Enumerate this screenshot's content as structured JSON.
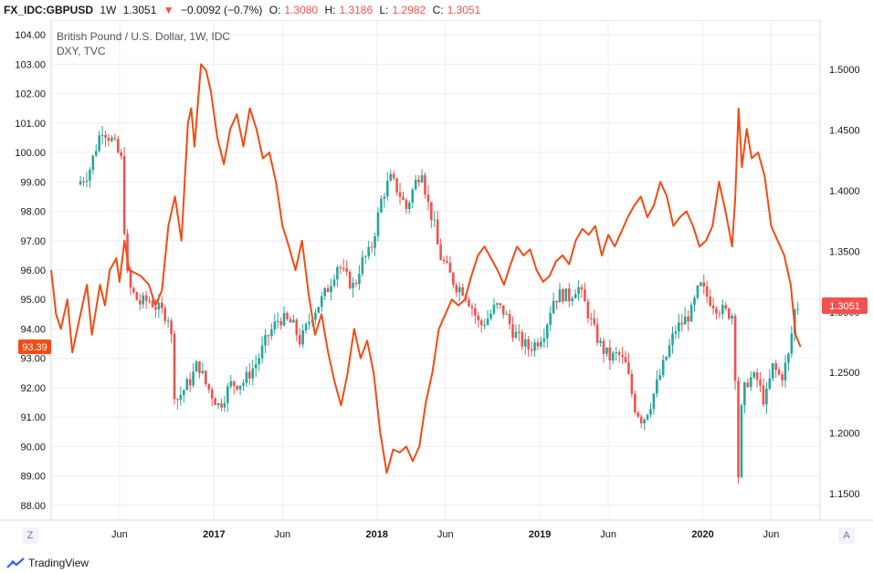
{
  "header": {
    "symbol": "FX_IDC:GBPUSD",
    "interval": "1W",
    "last": "1.3051",
    "change_arrow": "▼",
    "change": "−0.0092 (−0.7%)",
    "o_label": "O:",
    "o_val": "1.3080",
    "h_label": "H:",
    "h_val": "1.3186",
    "l_label": "L:",
    "l_val": "1.2982",
    "c_label": "C:",
    "c_val": "1.3051"
  },
  "legend": {
    "line1": "British Pound / U.S. Dollar, 1W, IDC",
    "line2": "DXY, TVC"
  },
  "branding": {
    "name": "TradingView"
  },
  "nav": {
    "left_btn": "Z",
    "right_btn": "A"
  },
  "colors": {
    "up": "#26a69a",
    "down": "#ef5350",
    "line": "#f24b14",
    "grid": "#eceef2",
    "text": "#131722"
  },
  "chart_data": {
    "type": "candlestick+line",
    "title": "British Pound / U.S. Dollar, 1W, IDC",
    "x_range": [
      "2016-03",
      "2020-07"
    ],
    "x_ticks": [
      {
        "label": "Jun",
        "t": 2016.42
      },
      {
        "label": "2017",
        "t": 2017.0
      },
      {
        "label": "Jun",
        "t": 2017.42
      },
      {
        "label": "2018",
        "t": 2018.0
      },
      {
        "label": "Jun",
        "t": 2018.42
      },
      {
        "label": "2019",
        "t": 2019.0
      },
      {
        "label": "Jun",
        "t": 2019.42
      },
      {
        "label": "2020",
        "t": 2020.0
      },
      {
        "label": "Jun",
        "t": 2020.42
      }
    ],
    "left_axis": {
      "series": "DXY, TVC",
      "ylim": [
        87.5,
        104.5
      ],
      "ticks": [
        "104.00",
        "103.00",
        "102.00",
        "101.00",
        "100.00",
        "99.00",
        "98.00",
        "97.00",
        "96.00",
        "95.00",
        "94.00",
        "93.00",
        "92.00",
        "91.00",
        "90.00",
        "89.00",
        "88.00"
      ],
      "last_label": "93.39",
      "last_value": 93.39
    },
    "right_axis": {
      "series": "GBP/USD",
      "ylim": [
        1.1282,
        1.5407
      ],
      "ticks": [
        "1.5000",
        "1.4500",
        "1.4000",
        "1.3500",
        "1.3000",
        "1.2500",
        "1.2000",
        "1.1500"
      ],
      "last_label": "1.3051",
      "last_value": 1.3051
    },
    "gbpusd_keypoints": [
      [
        2016.18,
        1.405
      ],
      [
        2016.25,
        1.415
      ],
      [
        2016.33,
        1.452
      ],
      [
        2016.4,
        1.44
      ],
      [
        2016.45,
        1.425
      ],
      [
        2016.48,
        1.335
      ],
      [
        2016.5,
        1.32
      ],
      [
        2016.56,
        1.307
      ],
      [
        2016.62,
        1.31
      ],
      [
        2016.68,
        1.302
      ],
      [
        2016.75,
        1.295
      ],
      [
        2016.78,
        1.225
      ],
      [
        2016.83,
        1.235
      ],
      [
        2016.88,
        1.245
      ],
      [
        2016.92,
        1.258
      ],
      [
        2016.97,
        1.24
      ],
      [
        2017.05,
        1.222
      ],
      [
        2017.12,
        1.24
      ],
      [
        2017.2,
        1.242
      ],
      [
        2017.28,
        1.258
      ],
      [
        2017.35,
        1.28
      ],
      [
        2017.42,
        1.295
      ],
      [
        2017.5,
        1.29
      ],
      [
        2017.55,
        1.275
      ],
      [
        2017.62,
        1.298
      ],
      [
        2017.68,
        1.31
      ],
      [
        2017.72,
        1.32
      ],
      [
        2017.78,
        1.34
      ],
      [
        2017.82,
        1.33
      ],
      [
        2017.88,
        1.32
      ],
      [
        2017.92,
        1.34
      ],
      [
        2017.98,
        1.35
      ],
      [
        2018.02,
        1.375
      ],
      [
        2018.05,
        1.395
      ],
      [
        2018.1,
        1.41
      ],
      [
        2018.15,
        1.4
      ],
      [
        2018.2,
        1.385
      ],
      [
        2018.25,
        1.405
      ],
      [
        2018.3,
        1.42
      ],
      [
        2018.32,
        1.395
      ],
      [
        2018.37,
        1.372
      ],
      [
        2018.4,
        1.348
      ],
      [
        2018.45,
        1.335
      ],
      [
        2018.5,
        1.322
      ],
      [
        2018.55,
        1.318
      ],
      [
        2018.6,
        1.305
      ],
      [
        2018.65,
        1.288
      ],
      [
        2018.7,
        1.295
      ],
      [
        2018.75,
        1.305
      ],
      [
        2018.8,
        1.3
      ],
      [
        2018.85,
        1.285
      ],
      [
        2018.9,
        1.276
      ],
      [
        2018.95,
        1.27
      ],
      [
        2019.0,
        1.275
      ],
      [
        2019.05,
        1.285
      ],
      [
        2019.1,
        1.31
      ],
      [
        2019.15,
        1.315
      ],
      [
        2019.2,
        1.312
      ],
      [
        2019.25,
        1.322
      ],
      [
        2019.3,
        1.305
      ],
      [
        2019.35,
        1.285
      ],
      [
        2019.4,
        1.27
      ],
      [
        2019.45,
        1.262
      ],
      [
        2019.5,
        1.265
      ],
      [
        2019.55,
        1.255
      ],
      [
        2019.6,
        1.222
      ],
      [
        2019.65,
        1.21
      ],
      [
        2019.7,
        1.225
      ],
      [
        2019.75,
        1.245
      ],
      [
        2019.8,
        1.265
      ],
      [
        2019.85,
        1.285
      ],
      [
        2019.9,
        1.292
      ],
      [
        2019.95,
        1.3
      ],
      [
        2020.0,
        1.322
      ],
      [
        2020.05,
        1.312
      ],
      [
        2020.1,
        1.305
      ],
      [
        2020.15,
        1.3
      ],
      [
        2020.2,
        1.298
      ],
      [
        2020.22,
        1.245
      ],
      [
        2020.24,
        1.155
      ],
      [
        2020.26,
        1.23
      ],
      [
        2020.3,
        1.245
      ],
      [
        2020.35,
        1.245
      ],
      [
        2020.4,
        1.225
      ],
      [
        2020.45,
        1.255
      ],
      [
        2020.5,
        1.245
      ],
      [
        2020.55,
        1.265
      ],
      [
        2020.58,
        1.3
      ],
      [
        2020.6,
        1.305
      ]
    ],
    "dxy_points": [
      [
        2016.0,
        96.0
      ],
      [
        2016.03,
        94.5
      ],
      [
        2016.06,
        94.0
      ],
      [
        2016.1,
        95.0
      ],
      [
        2016.13,
        93.2
      ],
      [
        2016.18,
        94.5
      ],
      [
        2016.22,
        95.5
      ],
      [
        2016.25,
        93.8
      ],
      [
        2016.3,
        95.5
      ],
      [
        2016.33,
        94.8
      ],
      [
        2016.36,
        96.0
      ],
      [
        2016.4,
        96.4
      ],
      [
        2016.42,
        95.6
      ],
      [
        2016.45,
        97.0
      ],
      [
        2016.48,
        96.0
      ],
      [
        2016.55,
        95.8
      ],
      [
        2016.6,
        95.5
      ],
      [
        2016.64,
        94.8
      ],
      [
        2016.68,
        95.3
      ],
      [
        2016.72,
        97.5
      ],
      [
        2016.76,
        98.5
      ],
      [
        2016.8,
        97.0
      ],
      [
        2016.84,
        101.0
      ],
      [
        2016.86,
        101.5
      ],
      [
        2016.88,
        100.2
      ],
      [
        2016.92,
        103.0
      ],
      [
        2016.95,
        102.8
      ],
      [
        2016.98,
        102.1
      ],
      [
        2017.02,
        100.5
      ],
      [
        2017.06,
        99.6
      ],
      [
        2017.1,
        100.8
      ],
      [
        2017.14,
        101.3
      ],
      [
        2017.18,
        100.2
      ],
      [
        2017.22,
        101.5
      ],
      [
        2017.26,
        100.8
      ],
      [
        2017.3,
        99.8
      ],
      [
        2017.34,
        100.0
      ],
      [
        2017.38,
        99.0
      ],
      [
        2017.42,
        97.5
      ],
      [
        2017.46,
        96.8
      ],
      [
        2017.5,
        96.0
      ],
      [
        2017.54,
        97.0
      ],
      [
        2017.58,
        95.2
      ],
      [
        2017.62,
        93.8
      ],
      [
        2017.66,
        94.5
      ],
      [
        2017.7,
        93.2
      ],
      [
        2017.74,
        92.2
      ],
      [
        2017.78,
        91.4
      ],
      [
        2017.82,
        92.5
      ],
      [
        2017.86,
        94.0
      ],
      [
        2017.9,
        93.0
      ],
      [
        2017.94,
        93.6
      ],
      [
        2017.98,
        92.5
      ],
      [
        2018.02,
        90.5
      ],
      [
        2018.06,
        89.1
      ],
      [
        2018.1,
        89.9
      ],
      [
        2018.14,
        89.8
      ],
      [
        2018.18,
        90.0
      ],
      [
        2018.22,
        89.5
      ],
      [
        2018.26,
        90.0
      ],
      [
        2018.3,
        91.5
      ],
      [
        2018.34,
        92.5
      ],
      [
        2018.38,
        94.0
      ],
      [
        2018.42,
        94.5
      ],
      [
        2018.46,
        95.0
      ],
      [
        2018.5,
        94.8
      ],
      [
        2018.54,
        95.0
      ],
      [
        2018.58,
        95.8
      ],
      [
        2018.62,
        96.5
      ],
      [
        2018.66,
        96.8
      ],
      [
        2018.7,
        96.4
      ],
      [
        2018.74,
        96.0
      ],
      [
        2018.78,
        95.5
      ],
      [
        2018.82,
        96.2
      ],
      [
        2018.86,
        96.8
      ],
      [
        2018.9,
        96.5
      ],
      [
        2018.94,
        96.7
      ],
      [
        2018.98,
        96.0
      ],
      [
        2019.02,
        95.6
      ],
      [
        2019.06,
        95.8
      ],
      [
        2019.1,
        96.3
      ],
      [
        2019.14,
        96.5
      ],
      [
        2019.18,
        96.2
      ],
      [
        2019.22,
        97.0
      ],
      [
        2019.26,
        97.4
      ],
      [
        2019.3,
        97.2
      ],
      [
        2019.34,
        97.5
      ],
      [
        2019.38,
        96.5
      ],
      [
        2019.42,
        97.2
      ],
      [
        2019.46,
        96.8
      ],
      [
        2019.5,
        97.3
      ],
      [
        2019.54,
        97.8
      ],
      [
        2019.58,
        98.2
      ],
      [
        2019.62,
        98.5
      ],
      [
        2019.66,
        97.8
      ],
      [
        2019.7,
        98.2
      ],
      [
        2019.74,
        99.0
      ],
      [
        2019.78,
        98.5
      ],
      [
        2019.82,
        97.5
      ],
      [
        2019.86,
        97.8
      ],
      [
        2019.9,
        98.0
      ],
      [
        2019.94,
        97.5
      ],
      [
        2019.98,
        96.8
      ],
      [
        2020.02,
        97.0
      ],
      [
        2020.06,
        97.5
      ],
      [
        2020.1,
        99.0
      ],
      [
        2020.14,
        98.0
      ],
      [
        2020.18,
        96.8
      ],
      [
        2020.2,
        98.5
      ],
      [
        2020.22,
        101.5
      ],
      [
        2020.24,
        99.5
      ],
      [
        2020.27,
        100.8
      ],
      [
        2020.3,
        99.8
      ],
      [
        2020.34,
        100.0
      ],
      [
        2020.38,
        99.2
      ],
      [
        2020.42,
        97.5
      ],
      [
        2020.46,
        97.0
      ],
      [
        2020.5,
        96.5
      ],
      [
        2020.54,
        95.5
      ],
      [
        2020.57,
        93.8
      ],
      [
        2020.6,
        93.39
      ]
    ]
  }
}
